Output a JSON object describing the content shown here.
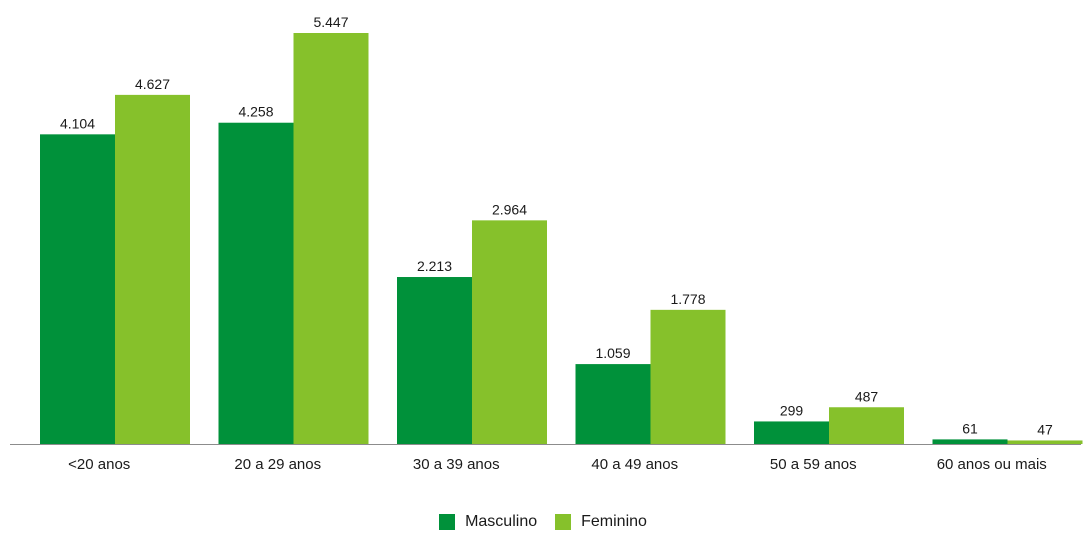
{
  "chart_data": {
    "type": "bar",
    "categories": [
      "<20 anos",
      "20 a 29 anos",
      "30 a 39 anos",
      "40 a 49 anos",
      "50 a 59 anos",
      "60 anos ou mais"
    ],
    "series": [
      {
        "name": "Masculino",
        "values": [
          4104,
          4258,
          2213,
          1059,
          299,
          61
        ],
        "labels": [
          "4.104",
          "4.258",
          "2.213",
          "1.059",
          "299",
          "61"
        ],
        "color": "#00913A"
      },
      {
        "name": "Feminino",
        "values": [
          4627,
          5447,
          2964,
          1778,
          487,
          47
        ],
        "labels": [
          "4.627",
          "5.447",
          "2.964",
          "1.778",
          "487",
          "47"
        ],
        "color": "#86C12B"
      }
    ],
    "ylim": [
      0,
      5600
    ],
    "grid": false,
    "legend_position": "bottom"
  }
}
